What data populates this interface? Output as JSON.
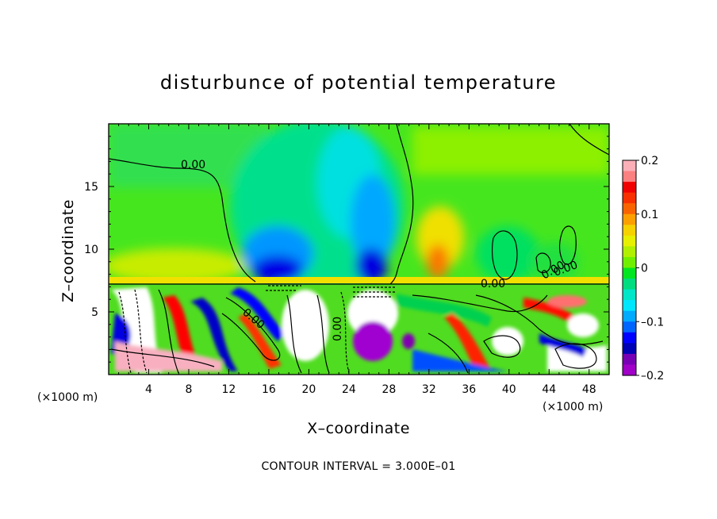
{
  "chart_data": {
    "type": "heatmap",
    "title": "disturbunce of potential temperature",
    "xlabel": "X–coordinate",
    "ylabel": "Z–coordinate",
    "x_unit_label": "(×1000 m)",
    "x_unit_label_right": "(×1000 m)",
    "xlim": [
      0,
      50
    ],
    "ylim": [
      0,
      20
    ],
    "x_ticks": [
      4,
      8,
      12,
      16,
      20,
      24,
      28,
      32,
      36,
      40,
      44,
      48
    ],
    "x_tick_labels": [
      "4",
      "8",
      "12",
      "16",
      "20",
      "24",
      "28",
      "32",
      "36",
      "40",
      "44",
      "48"
    ],
    "y_ticks": [
      5,
      10,
      15
    ],
    "y_tick_labels": [
      "5",
      "10",
      "15"
    ],
    "colorbar": {
      "range": [
        -0.2,
        0.2
      ],
      "ticks": [
        0.2,
        0.1,
        0,
        -0.1,
        -0.2
      ],
      "tick_labels": [
        "0.2",
        "0.1",
        "0",
        "–0.1",
        "–0.2"
      ],
      "colors": [
        "#fbb0b8",
        "#fb8080",
        "#f00000",
        "#f83000",
        "#fa6400",
        "#fca000",
        "#f6d200",
        "#e6f000",
        "#b0f000",
        "#70f000",
        "#00e620",
        "#00dc80",
        "#00e6c8",
        "#00e6ff",
        "#00aaff",
        "#0064ff",
        "#0000ff",
        "#0000b4",
        "#7800b4",
        "#a000c8"
      ]
    },
    "contour_labels": [
      "0.00",
      "0.00",
      "0.00",
      "0.00",
      "0.00",
      "0.00"
    ],
    "footer": "CONTOUR INTERVAL = 3.000E–01"
  }
}
